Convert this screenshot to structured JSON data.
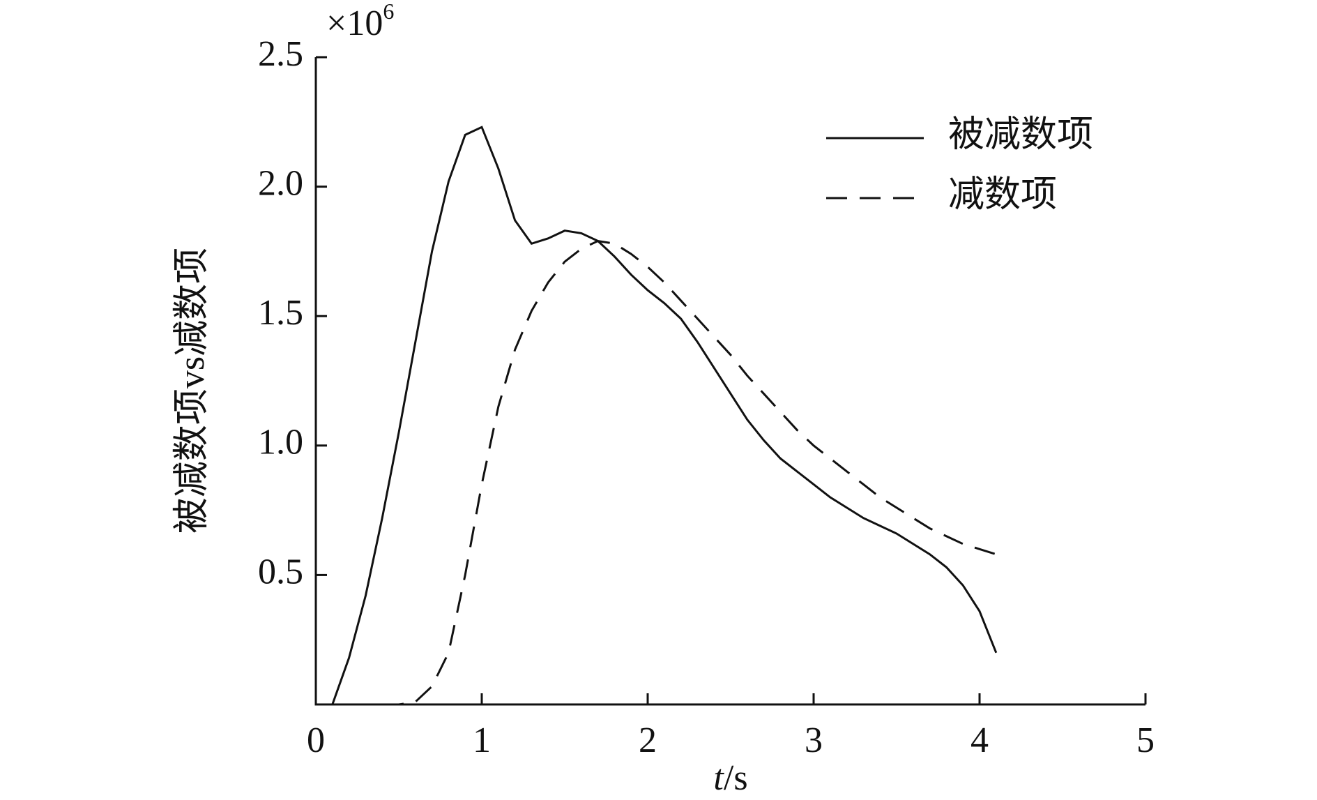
{
  "chart_data": {
    "type": "line",
    "ylabel": "被减数项vs减数项",
    "xlabel": {
      "italic": "t",
      "rest": "/s"
    },
    "y_multiplier": {
      "base": "×10",
      "exponent": "6"
    },
    "x": [
      0,
      0.1,
      0.2,
      0.3,
      0.4,
      0.5,
      0.6,
      0.7,
      0.8,
      0.9,
      1.0,
      1.1,
      1.2,
      1.3,
      1.4,
      1.5,
      1.6,
      1.7,
      1.8,
      1.9,
      2.0,
      2.1,
      2.2,
      2.3,
      2.4,
      2.5,
      2.6,
      2.7,
      2.8,
      2.9,
      3.0,
      3.1,
      3.2,
      3.3,
      3.4,
      3.5,
      3.6,
      3.7,
      3.8,
      3.9,
      4.0,
      4.1
    ],
    "series": [
      {
        "name": "被减数项",
        "color": "#111111",
        "dash": "solid",
        "values": [
          0,
          0,
          0.18,
          0.42,
          0.72,
          1.05,
          1.4,
          1.75,
          2.02,
          2.2,
          2.23,
          2.07,
          1.87,
          1.78,
          1.8,
          1.83,
          1.82,
          1.79,
          1.73,
          1.66,
          1.6,
          1.55,
          1.49,
          1.4,
          1.3,
          1.2,
          1.1,
          1.02,
          0.95,
          0.9,
          0.85,
          0.8,
          0.76,
          0.72,
          0.69,
          0.66,
          0.62,
          0.58,
          0.53,
          0.46,
          0.36,
          0.2
        ]
      },
      {
        "name": "减数项",
        "color": "#111111",
        "dash": "dashed",
        "values": [
          0,
          0,
          0,
          0,
          0,
          0,
          0.01,
          0.07,
          0.2,
          0.5,
          0.85,
          1.15,
          1.37,
          1.52,
          1.63,
          1.71,
          1.76,
          1.79,
          1.78,
          1.74,
          1.69,
          1.63,
          1.56,
          1.49,
          1.42,
          1.35,
          1.27,
          1.2,
          1.13,
          1.06,
          1.0,
          0.95,
          0.9,
          0.85,
          0.8,
          0.76,
          0.72,
          0.68,
          0.65,
          0.62,
          0.6,
          0.58
        ]
      }
    ],
    "xlim": [
      0,
      5
    ],
    "xticks": [
      0,
      1,
      2,
      3,
      4,
      5
    ],
    "ylim": [
      0,
      2.5
    ],
    "yticks": [
      0.5,
      {
        "value": 1,
        "label": "1.0"
      },
      1.5,
      {
        "value": 2,
        "label": "2.0"
      },
      2.5
    ],
    "legend": "upper right",
    "grid": false
  }
}
